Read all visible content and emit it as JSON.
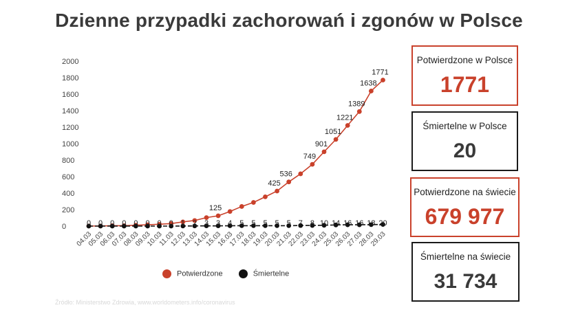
{
  "title": "Dzienne przypadki zachorowań i zgonów w Polsce",
  "chart_data": {
    "type": "line",
    "categories": [
      "04.03",
      "05.03",
      "06.03",
      "07.03",
      "08.03",
      "09.03",
      "10.03",
      "11.03",
      "12.03",
      "13.03",
      "14.03",
      "15.03",
      "16.03",
      "17.03",
      "18.03",
      "19.03",
      "20.03",
      "21.03",
      "22.03",
      "23.03",
      "24.03",
      "25.03",
      "26.03",
      "27.03",
      "28.03",
      "29.03"
    ],
    "ylim": [
      0,
      2000
    ],
    "yticks": [
      0,
      200,
      400,
      600,
      800,
      1000,
      1200,
      1400,
      1600,
      1800,
      2000
    ],
    "series": [
      {
        "name": "Potwierdzone",
        "color": "#c9412b",
        "values": [
          1,
          1,
          5,
          5,
          11,
          16,
          22,
          31,
          51,
          68,
          103,
          125,
          177,
          238,
          287,
          355,
          425,
          536,
          634,
          749,
          901,
          1051,
          1221,
          1389,
          1638,
          1771
        ],
        "labels": [
          "",
          "",
          "",
          "",
          "",
          "",
          "",
          "",
          "",
          "",
          "",
          "125",
          "",
          "",
          "",
          "",
          "425",
          "536",
          "",
          "749",
          "901",
          "1051",
          "1221",
          "1389",
          "1638",
          "1771"
        ]
      },
      {
        "name": "Śmiertelne",
        "color": "#111111",
        "values": [
          0,
          0,
          0,
          0,
          0,
          0,
          0,
          0,
          1,
          2,
          3,
          3,
          4,
          5,
          5,
          5,
          5,
          5,
          7,
          8,
          10,
          14,
          16,
          16,
          18,
          20
        ],
        "labels": [
          "0",
          "0",
          "0",
          "0",
          "0",
          "0",
          "0",
          "0",
          "1",
          "2",
          "3",
          "3",
          "4",
          "5",
          "5",
          "5",
          "5",
          "5",
          "7",
          "8",
          "10",
          "14",
          "16",
          "16",
          "18",
          "20"
        ]
      }
    ],
    "legend": "bottom"
  },
  "stats": [
    {
      "label": "Potwierdzone w Polsce",
      "value": "1771",
      "style": "red"
    },
    {
      "label": "Śmiertelne w Polsce",
      "value": "20",
      "style": "dark"
    },
    {
      "label": "Potwierdzone na świecie",
      "value": "679 977",
      "style": "red"
    },
    {
      "label": "Śmiertelne na świecie",
      "value": "31 734",
      "style": "dark"
    }
  ],
  "legend": {
    "confirmed": "Potwierdzone",
    "deaths": "Śmiertelne"
  },
  "source": "Źródło: Ministerstwo Zdrowia, www.worldometers.info/coronavirus"
}
